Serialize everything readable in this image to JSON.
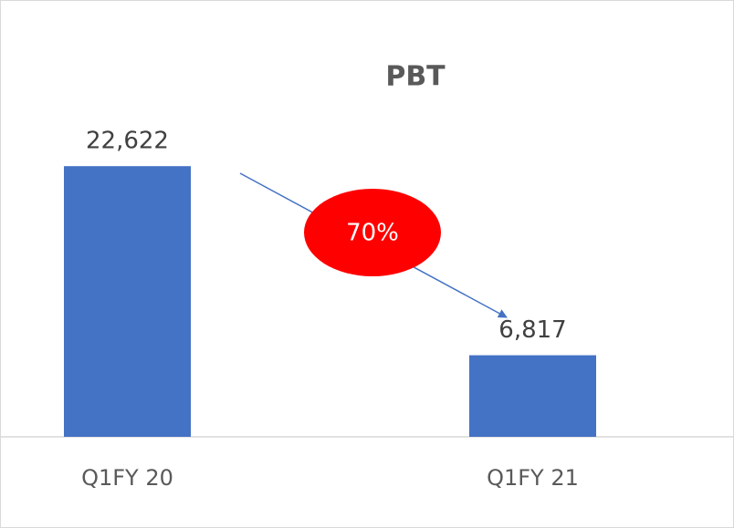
{
  "chart_data": {
    "type": "bar",
    "title": "PBT",
    "categories": [
      "Q1FY 20",
      "Q1FY 21"
    ],
    "values": [
      22622,
      6817
    ],
    "value_labels": [
      "22,622",
      "6,817"
    ],
    "color": "#4472c4",
    "ylim": [
      0,
      25000
    ],
    "annotations": [
      "70%"
    ]
  }
}
